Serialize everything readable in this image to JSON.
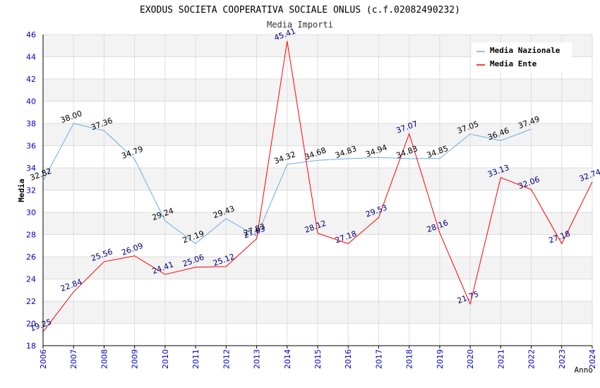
{
  "chart_data": {
    "type": "line",
    "title": "EXODUS SOCIETA COOPERATIVA SOCIALE ONLUS (c.f.02082490232)",
    "subtitle": "Media Importi",
    "xlabel": "Anno",
    "ylabel": "Media",
    "ylim": [
      18,
      46
    ],
    "yticks": [
      18,
      20,
      22,
      24,
      26,
      28,
      30,
      32,
      34,
      36,
      38,
      40,
      42,
      44,
      46
    ],
    "x": [
      "2006",
      "2007",
      "2008",
      "2009",
      "2010",
      "2011",
      "2012",
      "2013",
      "2014",
      "2015",
      "2016",
      "2017",
      "2018",
      "2019",
      "2020",
      "2021",
      "2022",
      "2023",
      "2024"
    ],
    "legend_position": "top-right",
    "series": [
      {
        "name": "Media Nazionale",
        "color": "#6aaee8",
        "label_color": "#000000",
        "values": [
          32.82,
          38.0,
          37.36,
          34.79,
          29.24,
          27.19,
          29.43,
          27.83,
          34.32,
          34.68,
          34.83,
          34.94,
          34.83,
          34.85,
          37.05,
          36.46,
          37.49,
          null,
          null
        ],
        "labels": [
          "32.82",
          "38.00",
          "37.36",
          "34.79",
          "29.24",
          "27.19",
          "29.43",
          "27.83",
          "34.32",
          "34.68",
          "34.83",
          "34.94",
          "34.83",
          "34.85",
          "37.05",
          "36.46",
          "37.49",
          null,
          null
        ]
      },
      {
        "name": "Media Ente",
        "color": "#ff0000",
        "label_color": "#000080",
        "values": [
          19.25,
          22.84,
          25.56,
          26.09,
          24.41,
          25.06,
          25.12,
          27.63,
          45.41,
          28.12,
          27.18,
          29.53,
          37.07,
          28.16,
          21.75,
          33.13,
          32.06,
          27.18,
          32.74
        ],
        "labels": [
          "19.25",
          "22.84",
          "25.56",
          "26.09",
          "24.41",
          "25.06",
          "25.12",
          "27.63",
          "45.41",
          "28.12",
          "27.18",
          "29.53",
          "37.07",
          "28.16",
          "21.75",
          "33.13",
          "32.06",
          "27.18",
          "32.74"
        ]
      }
    ]
  },
  "colors": {
    "axis_tick_text": "#0000cc",
    "band_fill": "#f3f3f3",
    "grid_line": "#dddddd"
  }
}
